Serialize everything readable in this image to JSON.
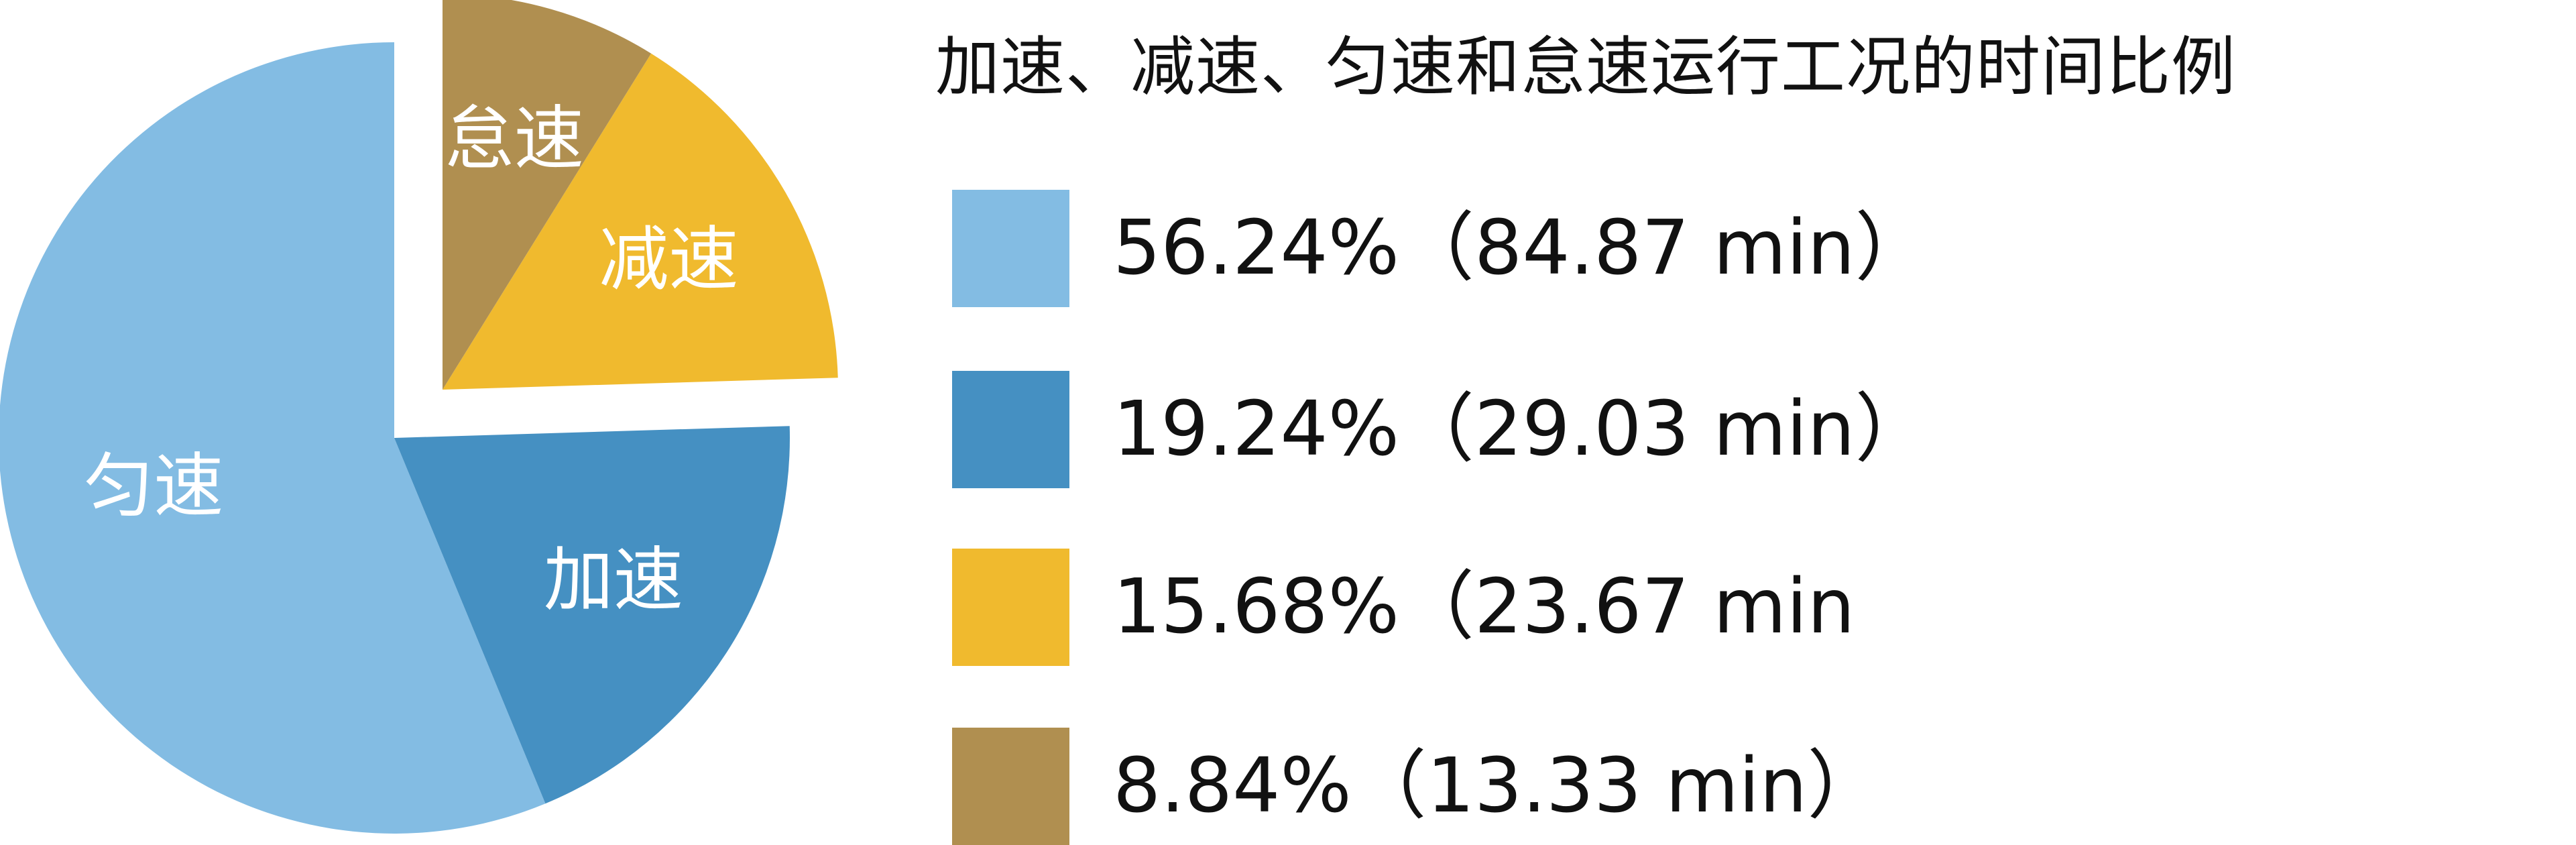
{
  "chart_data": {
    "type": "pie",
    "title": "加速、减速、匀速和怠速运行工况的时间比例",
    "slices": [
      {
        "name": "匀速",
        "value": 56.24,
        "legend_text": "56.24%（84.87 min）",
        "color": "#83BCE3",
        "exploded": false
      },
      {
        "name": "加速",
        "value": 19.24,
        "legend_text": "19.24%（29.03 min）",
        "color": "#4590C2",
        "exploded": false
      },
      {
        "name": "减速",
        "value": 15.68,
        "legend_text": "15.68%（23.67 min",
        "color": "#F0BA2E",
        "exploded": true
      },
      {
        "name": "怠速",
        "value": 8.84,
        "legend_text": "8.84%（13.33 min）",
        "color": "#B08F50",
        "exploded": true
      }
    ],
    "legend_placement": "right"
  }
}
